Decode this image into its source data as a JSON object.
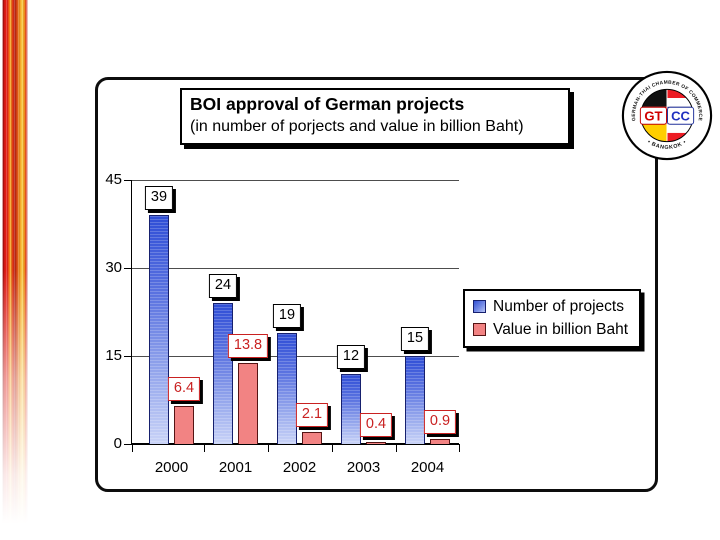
{
  "title_box": {
    "line1": "BOI approval of German projects",
    "line2": "(in number of porjects and value in billion Baht)"
  },
  "logo": {
    "arc_text_top": "GERMAN-THAI  CHAMBER  OF  COMMERCE",
    "arc_text_bottom": "• BANGKOK •",
    "left_tag": "GT",
    "right_tag": "CC"
  },
  "chart_data": {
    "type": "bar",
    "title": "BOI approval of German projects (in number of porjects and value in billion Baht)",
    "categories": [
      "2000",
      "2001",
      "2002",
      "2003",
      "2004"
    ],
    "series": [
      {
        "name": "Number of projects",
        "values": [
          39,
          24,
          19,
          12,
          15
        ],
        "bar_color_top": "#2f4ed6",
        "bar_color_bottom": "#c9d3f7",
        "label_text_color": "#000000",
        "label_border_color": "#000000"
      },
      {
        "name": "Value in billion Baht",
        "values": [
          6.4,
          13.8,
          2.1,
          0.4,
          0.9
        ],
        "bar_color": "#f28383",
        "label_text_color": "#c92121",
        "label_border_color": "#c92121"
      }
    ],
    "xlabel": "",
    "ylabel": "",
    "ylim": [
      0,
      45
    ],
    "yticks": [
      0,
      15,
      30,
      45
    ],
    "grid": true,
    "legend_position": "right"
  }
}
